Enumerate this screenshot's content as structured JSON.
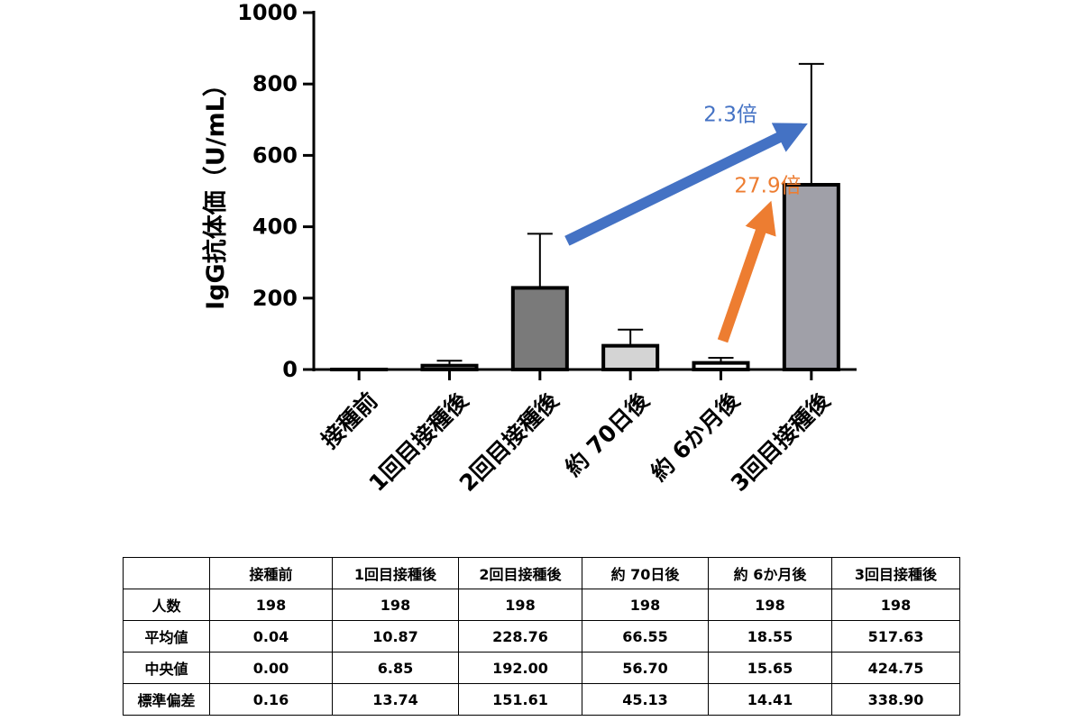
{
  "chart_data": {
    "type": "bar",
    "ylabel": "IgG抗体価（U/mL）",
    "ylim": [
      0,
      1000
    ],
    "yticks": [
      "0",
      "200",
      "400",
      "600",
      "800",
      "1000"
    ],
    "grid": false,
    "categories": [
      "接種前",
      "1回目接種後",
      "2回目接種後",
      "約 70日後",
      "約 6か月後",
      "3回目接種後"
    ],
    "values": [
      0.04,
      10.87,
      228.76,
      66.55,
      18.55,
      517.63
    ],
    "error_upper": [
      0.16,
      13.74,
      151.61,
      45.13,
      14.41,
      338.9
    ],
    "bar_colors": [
      "#ffffff",
      "#ffffff",
      "#7a7a7a",
      "#d4d4d4",
      "#ffffff",
      "#a0a0a8"
    ],
    "annotations": [
      {
        "text": "2.3倍",
        "from_category": "2回目接種後",
        "to_category": "3回目接種後",
        "color": "#4472c4"
      },
      {
        "text": "27.9倍",
        "from_category": "約 6か月後",
        "to_category": "3回目接種後",
        "color": "#ed7d31"
      }
    ]
  },
  "table": {
    "headers": [
      "",
      "接種前",
      "1回目接種後",
      "2回目接種後",
      "約 70日後",
      "約 6か月後",
      "3回目接種後"
    ],
    "rows": [
      {
        "label": "人数",
        "values": [
          "198",
          "198",
          "198",
          "198",
          "198",
          "198"
        ]
      },
      {
        "label": "平均値",
        "values": [
          "0.04",
          "10.87",
          "228.76",
          "66.55",
          "18.55",
          "517.63"
        ]
      },
      {
        "label": "中央値",
        "values": [
          "0.00",
          "6.85",
          "192.00",
          "56.70",
          "15.65",
          "424.75"
        ]
      },
      {
        "label": "標準偏差",
        "values": [
          "0.16",
          "13.74",
          "151.61",
          "45.13",
          "14.41",
          "338.90"
        ]
      }
    ]
  }
}
